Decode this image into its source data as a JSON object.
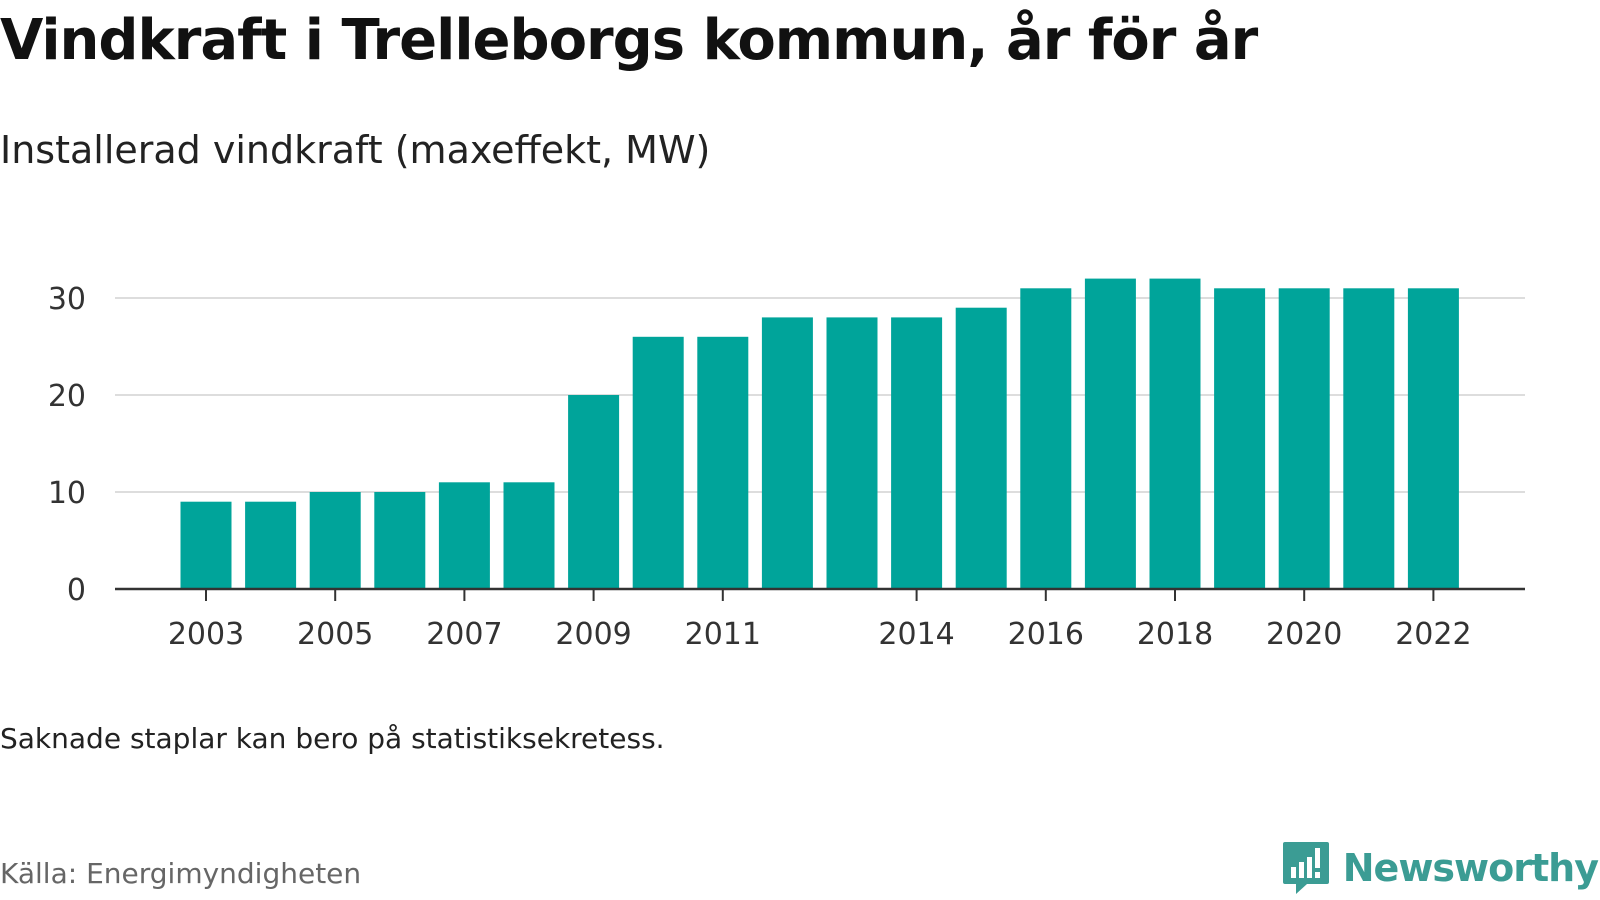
{
  "title": "Vindkraft i Trelleborgs kommun, år för år",
  "subtitle": "Installerad vindkraft (maxeffekt, MW)",
  "note": "Saknade staplar kan bero på statistiksekretess.",
  "source": "Källa: Energimyndigheten",
  "brand": {
    "name": "Newsworthy",
    "icon": "bar-chart-logo-icon",
    "color": "#3b9c94"
  },
  "colors": {
    "bar": "#00a49a",
    "grid": "#dddddd",
    "axis": "#333333"
  },
  "chart_data": {
    "type": "bar",
    "categories": [
      2003,
      2004,
      2005,
      2006,
      2007,
      2008,
      2009,
      2010,
      2011,
      2012,
      2013,
      2014,
      2015,
      2016,
      2017,
      2018,
      2019,
      2020,
      2021,
      2022
    ],
    "values": [
      9,
      9,
      10,
      10,
      11,
      11,
      20,
      26,
      26,
      28,
      28,
      28,
      29,
      31,
      32,
      32,
      31,
      31,
      31,
      31
    ],
    "x_tick_labels": [
      "2003",
      "2005",
      "2007",
      "2009",
      "2011",
      "2014",
      "2016",
      "2018",
      "2020",
      "2022"
    ],
    "y_ticks": [
      0,
      10,
      20,
      30
    ],
    "ylim": [
      0,
      30
    ],
    "grid": true,
    "legend": false
  }
}
